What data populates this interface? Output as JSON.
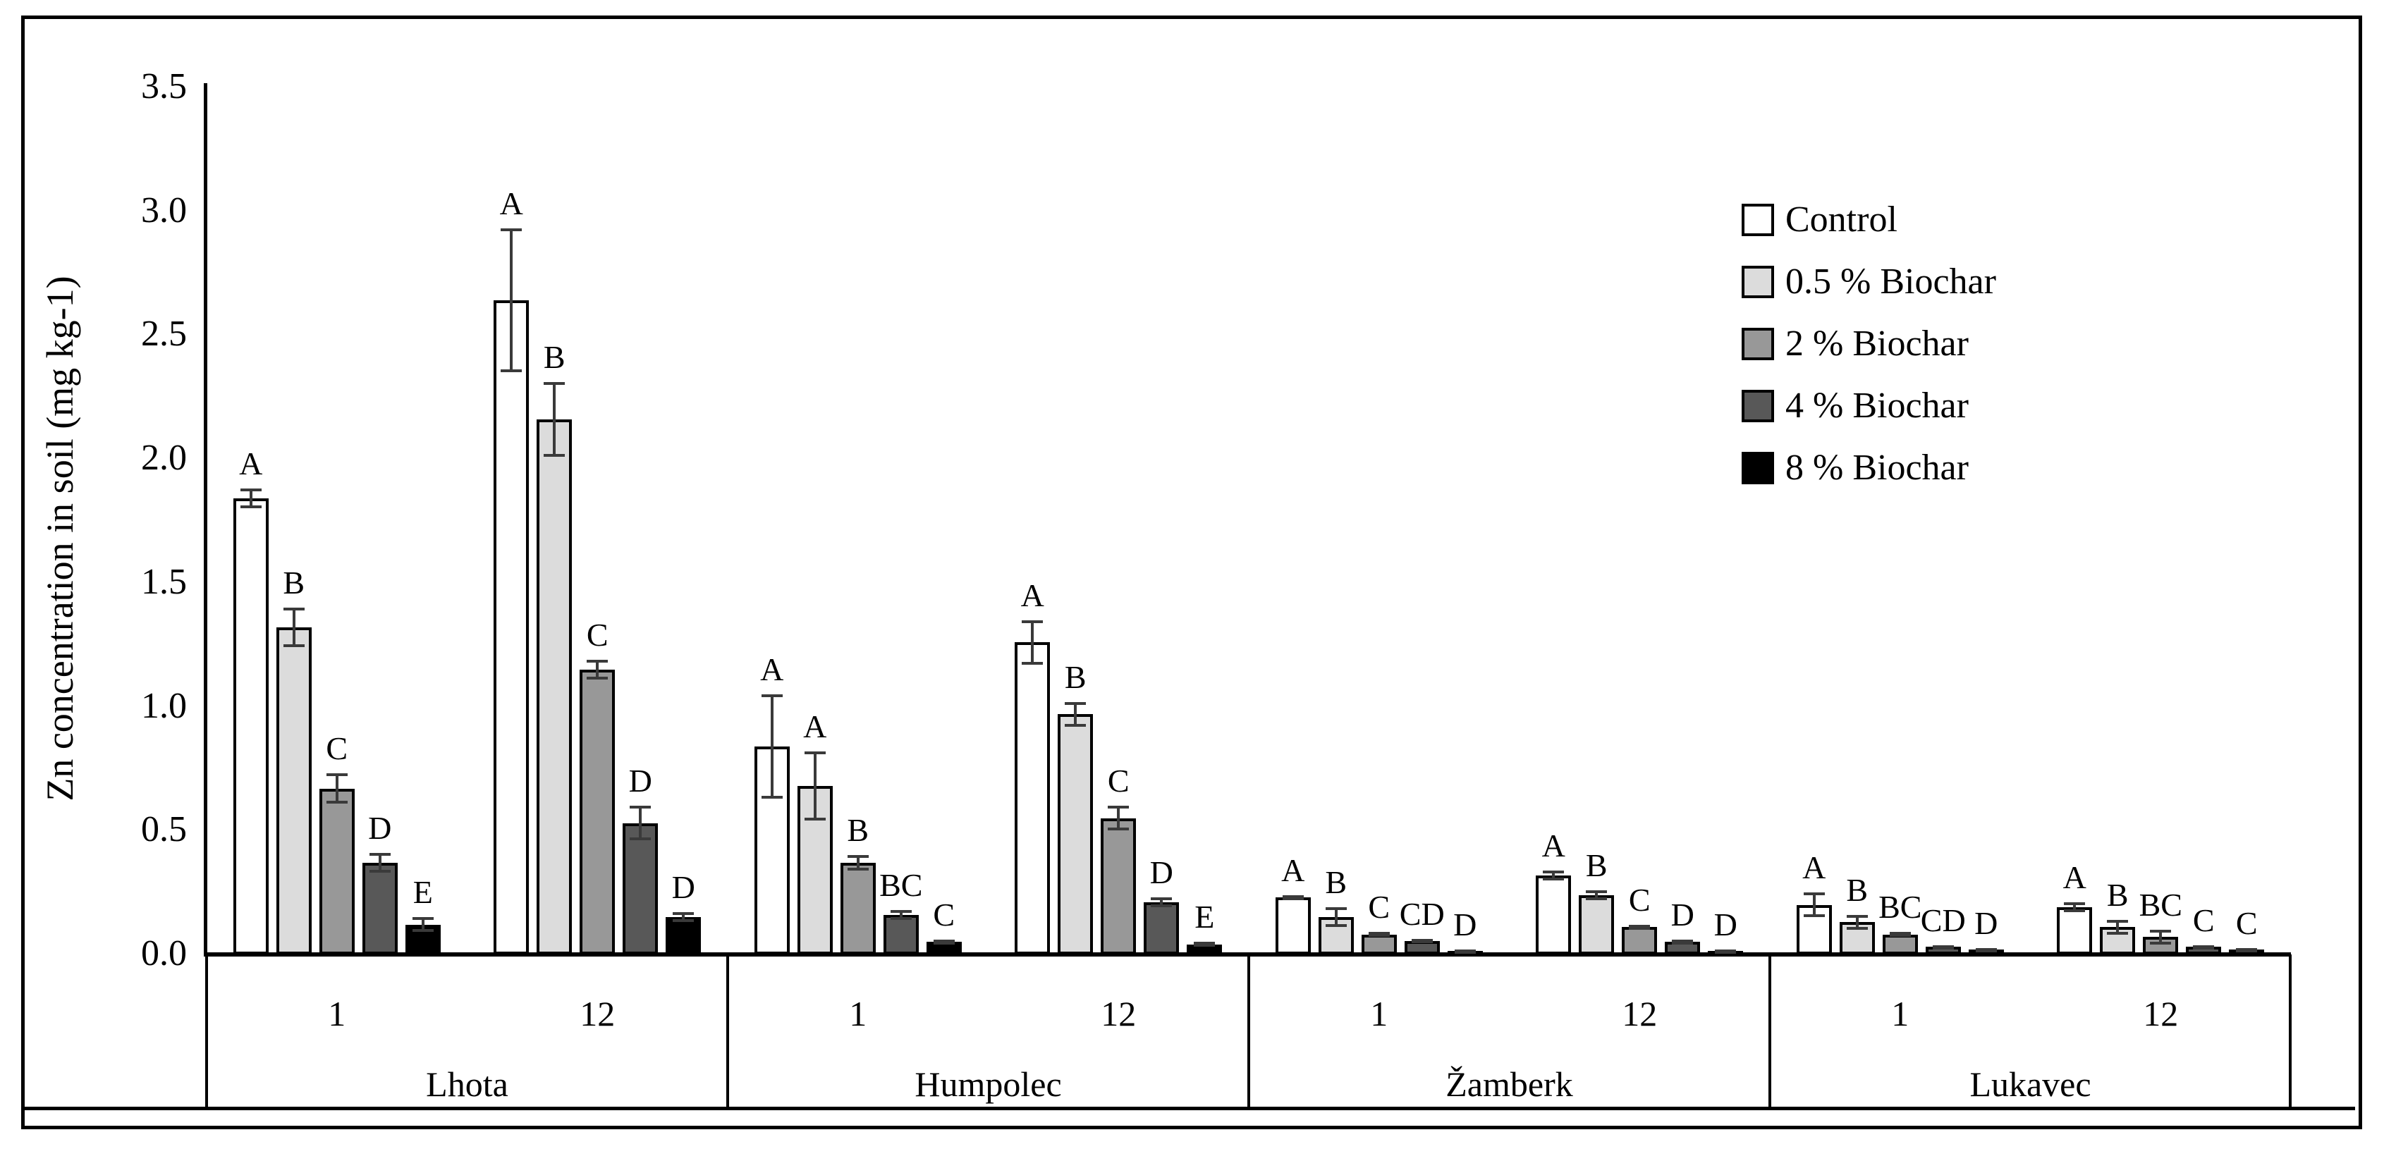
{
  "chart_data": {
    "type": "bar",
    "title": "",
    "ylabel": "Zn concentration in soil (mg kg-1)",
    "xlabel": "",
    "ylim": [
      0,
      3.5
    ],
    "ytick_step": 0.5,
    "ytick_labels": [
      "0.0",
      "0.5",
      "1.0",
      "1.5",
      "2.0",
      "2.5",
      "3.0",
      "3.5"
    ],
    "grid": false,
    "legend_position": "upper-right",
    "error_color": "#3a3a3a",
    "series": [
      {
        "name": "Control",
        "color": "#ffffff"
      },
      {
        "name": "0.5 % Biochar",
        "color": "#dcdcdc"
      },
      {
        "name": "2 % Biochar",
        "color": "#989898"
      },
      {
        "name": "4 % Biochar",
        "color": "#585858"
      },
      {
        "name": "8 % Biochar",
        "color": "#000000"
      }
    ],
    "groups": [
      {
        "name": "Lhota",
        "times": [
          {
            "label": "1",
            "bars": [
              {
                "value": 1.84,
                "err": 0.04,
                "letter": "A"
              },
              {
                "value": 1.32,
                "err": 0.08,
                "letter": "B"
              },
              {
                "value": 0.67,
                "err": 0.06,
                "letter": "C"
              },
              {
                "value": 0.37,
                "err": 0.04,
                "letter": "D"
              },
              {
                "value": 0.12,
                "err": 0.03,
                "letter": "E"
              }
            ]
          },
          {
            "label": "12",
            "bars": [
              {
                "value": 2.64,
                "err": 0.29,
                "letter": "A"
              },
              {
                "value": 2.16,
                "err": 0.15,
                "letter": "B"
              },
              {
                "value": 1.15,
                "err": 0.04,
                "letter": "C"
              },
              {
                "value": 0.53,
                "err": 0.07,
                "letter": "D"
              },
              {
                "value": 0.15,
                "err": 0.02,
                "letter": "D"
              }
            ]
          }
        ]
      },
      {
        "name": "Humpolec",
        "times": [
          {
            "label": "1",
            "bars": [
              {
                "value": 0.84,
                "err": 0.21,
                "letter": "A"
              },
              {
                "value": 0.68,
                "err": 0.14,
                "letter": "A"
              },
              {
                "value": 0.37,
                "err": 0.03,
                "letter": "B"
              },
              {
                "value": 0.16,
                "err": 0.02,
                "letter": "BC"
              },
              {
                "value": 0.05,
                "err": 0.01,
                "letter": "C"
              }
            ]
          },
          {
            "label": "12",
            "bars": [
              {
                "value": 1.26,
                "err": 0.09,
                "letter": "A"
              },
              {
                "value": 0.97,
                "err": 0.05,
                "letter": "B"
              },
              {
                "value": 0.55,
                "err": 0.05,
                "letter": "C"
              },
              {
                "value": 0.21,
                "err": 0.02,
                "letter": "D"
              },
              {
                "value": 0.04,
                "err": 0.01,
                "letter": "E"
              }
            ]
          }
        ]
      },
      {
        "name": "Žamberk",
        "times": [
          {
            "label": "1",
            "bars": [
              {
                "value": 0.23,
                "err": 0.01,
                "letter": "A"
              },
              {
                "value": 0.15,
                "err": 0.04,
                "letter": "B"
              },
              {
                "value": 0.08,
                "err": 0.01,
                "letter": "C"
              },
              {
                "value": 0.055,
                "err": 0.008,
                "letter": "CD"
              },
              {
                "value": 0.015,
                "err": 0.005,
                "letter": "D"
              }
            ]
          },
          {
            "label": "12",
            "bars": [
              {
                "value": 0.32,
                "err": 0.02,
                "letter": "A"
              },
              {
                "value": 0.24,
                "err": 0.02,
                "letter": "B"
              },
              {
                "value": 0.11,
                "err": 0.01,
                "letter": "C"
              },
              {
                "value": 0.05,
                "err": 0.01,
                "letter": "D"
              },
              {
                "value": 0.015,
                "err": 0.005,
                "letter": "D"
              }
            ]
          }
        ]
      },
      {
        "name": "Lukavec",
        "times": [
          {
            "label": "1",
            "bars": [
              {
                "value": 0.2,
                "err": 0.05,
                "letter": "A"
              },
              {
                "value": 0.13,
                "err": 0.03,
                "letter": "B"
              },
              {
                "value": 0.08,
                "err": 0.01,
                "letter": "BC"
              },
              {
                "value": 0.03,
                "err": 0.008,
                "letter": "CD"
              },
              {
                "value": 0.02,
                "err": 0.005,
                "letter": "D"
              }
            ]
          },
          {
            "label": "12",
            "bars": [
              {
                "value": 0.19,
                "err": 0.02,
                "letter": "A"
              },
              {
                "value": 0.11,
                "err": 0.03,
                "letter": "B"
              },
              {
                "value": 0.07,
                "err": 0.03,
                "letter": "BC"
              },
              {
                "value": 0.03,
                "err": 0.008,
                "letter": "C"
              },
              {
                "value": 0.02,
                "err": 0.005,
                "letter": "C"
              }
            ]
          }
        ]
      }
    ]
  }
}
